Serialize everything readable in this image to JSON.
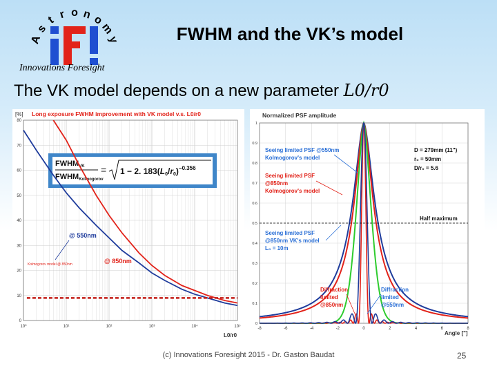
{
  "logo": {
    "arc_letters": [
      "A",
      "s",
      "t",
      "r",
      "o",
      "n",
      "o",
      "m",
      "y"
    ],
    "mark": "iFI",
    "tagline": "Innovations Foresight"
  },
  "slide": {
    "title": "FWHM and the VK’s model",
    "subtitle_text": "The VK model depends on a new parameter ",
    "subtitle_math": "L0/r0",
    "footer": "(c) Innovations Foresight 2015 - Dr. Gaston Baudat",
    "page_number": "25"
  },
  "colors": {
    "red": "#e2231a",
    "blue": "#1f3c9c",
    "green": "#2ecc2e",
    "label_blue": "#2a6fd6",
    "formula_box": "#3f86c9"
  },
  "chart_data": [
    {
      "type": "line",
      "title": "Long exposure FWHM improvement with VK model v.s. L0/r0",
      "ylabel": "[%]",
      "xlabel": "L0/r0",
      "xscale": "log",
      "xlim": [
        1,
        100000
      ],
      "ylim": [
        0,
        80
      ],
      "yticks": [
        "0",
        "10",
        "20",
        "30",
        "40",
        "50",
        "60",
        "70",
        "80"
      ],
      "xticks": [
        "10⁰",
        "10¹",
        "10²",
        "10³",
        "10⁴",
        "10⁵"
      ],
      "formula": "FWHMVK / FWHMKolmogorov = √(1 − 2.183(L0/r0)^−0.356)",
      "series": [
        {
          "name": "@ 550nm",
          "x": [
            1,
            2,
            5,
            10,
            20,
            50,
            100,
            200,
            500,
            1000,
            2000,
            5000,
            10000,
            20000,
            50000,
            100000
          ],
          "values": [
            76,
            68,
            58,
            51,
            45,
            38,
            33,
            28,
            23,
            19,
            16,
            12.5,
            10.5,
            9,
            7,
            6
          ]
        },
        {
          "name": "@ 850nm",
          "x": [
            5,
            10,
            20,
            50,
            100,
            200,
            500,
            1000,
            2000,
            5000,
            10000,
            20000,
            50000,
            100000
          ],
          "values": [
            80,
            72,
            62,
            50,
            42,
            35,
            27,
            22,
            18,
            14,
            12,
            10,
            8,
            7
          ]
        }
      ],
      "reference": {
        "name": "Kolmogorov model @ 850nm",
        "value": 9
      }
    },
    {
      "type": "line",
      "title": "Normalized PSF amplitude",
      "xlabel": "Angle [\"]",
      "xlim": [
        -8,
        8
      ],
      "ylim": [
        0,
        1
      ],
      "yticks": [
        "0",
        "0.1",
        "0.2",
        "0.3",
        "0.4",
        "0.5",
        "0.6",
        "0.7",
        "0.8",
        "0.9",
        "1"
      ],
      "xticks": [
        "-8",
        "-6",
        "-4",
        "-2",
        "0",
        "2",
        "4",
        "6",
        "8"
      ],
      "params": [
        "D = 279mm (11\")",
        "r₀ = 50mm",
        "D/r₀ = 5.6"
      ],
      "half_maximum_label": "Half maximum",
      "series": [
        {
          "name": "Seeing limited PSF @550nm Kolmogorov's model",
          "fwhm": 2.2
        },
        {
          "name": "Seeing limited PSF @850nm Kolmogorov's model",
          "fwhm": 1.9
        },
        {
          "name": "Seeing limited PSF @850nm VK's model L0 = 10m",
          "fwhm": 1.3
        },
        {
          "name": "Diffraction limited @850nm",
          "fwhm": 0.65
        },
        {
          "name": "Diffraction limited @550nm",
          "fwhm": 0.42
        }
      ],
      "labels": {
        "s550": [
          "Seeing limited PSF @550nm",
          "Kolmogorov's model"
        ],
        "s850": [
          "Seeing limited PSF",
          "@850nm",
          "Kolmogorov's model"
        ],
        "vk": [
          "Seeing limited PSF",
          "@850nm VK's model",
          "L₀ = 10m"
        ],
        "d850": [
          "Diffraction",
          "limited",
          "@850nm"
        ],
        "d550": [
          "Diffraction",
          "limited",
          "@550nm"
        ]
      }
    }
  ]
}
